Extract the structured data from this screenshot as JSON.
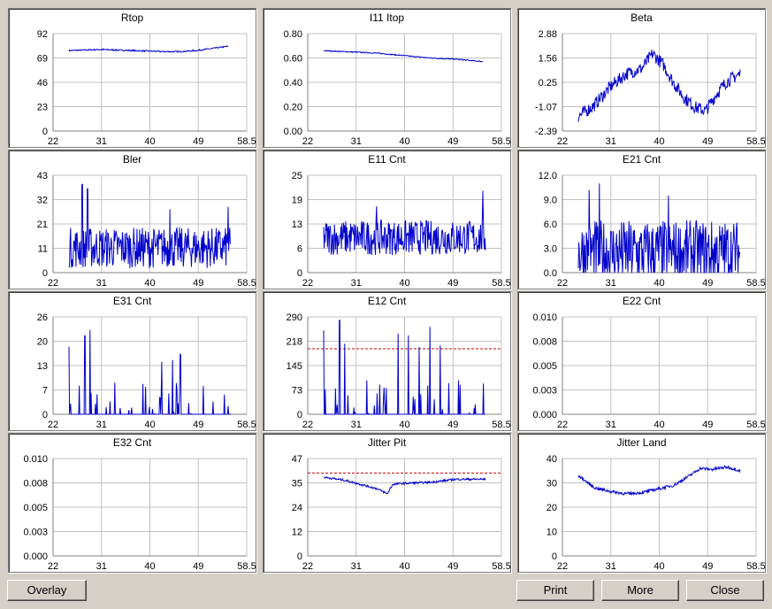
{
  "buttons": {
    "overlay": "Overlay",
    "print": "Print",
    "more": "More",
    "close": "Close"
  },
  "colors": {
    "series": "#0000cc",
    "limit": "#cc0000",
    "grid": "#c0c0c0"
  },
  "chart_data": [
    {
      "type": "line",
      "title": "Rtop",
      "xticks": [
        "22",
        "31",
        "40",
        "49",
        "58.5"
      ],
      "xlim": [
        22,
        58.5
      ],
      "yticks": [
        "0",
        "23",
        "46",
        "69",
        "92"
      ],
      "ylim": [
        0,
        92
      ],
      "series": [
        {
          "x": [
            25,
            28,
            31,
            34,
            37,
            40,
            43,
            46,
            49,
            52,
            55
          ],
          "y": [
            76,
            76.5,
            77,
            76.5,
            76,
            75.5,
            75,
            75,
            76,
            78,
            80
          ]
        }
      ],
      "noise": 0.6,
      "spikes": false,
      "limit": null
    },
    {
      "type": "line",
      "title": "I11 Itop",
      "xticks": [
        "22",
        "31",
        "40",
        "49",
        "58.5"
      ],
      "xlim": [
        22,
        58.5
      ],
      "yticks": [
        "0.00",
        "0.20",
        "0.40",
        "0.60",
        "0.80"
      ],
      "ylim": [
        0,
        0.8
      ],
      "series": [
        {
          "x": [
            25,
            30,
            35,
            40,
            45,
            50,
            55
          ],
          "y": [
            0.66,
            0.65,
            0.64,
            0.62,
            0.6,
            0.59,
            0.57
          ]
        }
      ],
      "noise": 0.004,
      "spikes": false,
      "limit": null
    },
    {
      "type": "line",
      "title": "Beta",
      "xticks": [
        "22",
        "31",
        "40",
        "49",
        "58.5"
      ],
      "xlim": [
        22,
        58.5
      ],
      "yticks": [
        "-2.39",
        "-1.07",
        "0.25",
        "1.56",
        "2.88"
      ],
      "ylim": [
        -2.39,
        2.88
      ],
      "series": [
        {
          "x": [
            25,
            28,
            31,
            34,
            37,
            39,
            41,
            43,
            45,
            47,
            49,
            51,
            53,
            55.5
          ],
          "y": [
            -1.6,
            -1.0,
            0.0,
            0.7,
            1.0,
            1.8,
            1.2,
            0.2,
            -0.6,
            -1.1,
            -1.3,
            -0.4,
            0.3,
            0.7
          ]
        }
      ],
      "noise": 0.35,
      "spikes": false,
      "limit": null
    },
    {
      "type": "line",
      "title": "Bler",
      "xticks": [
        "22",
        "31",
        "40",
        "49",
        "58.5"
      ],
      "xlim": [
        22,
        58.5
      ],
      "yticks": [
        "0",
        "11",
        "21",
        "32",
        "43"
      ],
      "ylim": [
        0,
        43
      ],
      "series": [
        {
          "x": [
            25,
            55.5
          ],
          "y": [
            11,
            11
          ]
        }
      ],
      "noise": 9,
      "peaks": [
        [
          27.5,
          39
        ],
        [
          28.5,
          37
        ],
        [
          44,
          28
        ],
        [
          55,
          29
        ]
      ],
      "spikes": false,
      "limit": null
    },
    {
      "type": "line",
      "title": "E11 Cnt",
      "xticks": [
        "22",
        "31",
        "40",
        "49",
        "58.5"
      ],
      "xlim": [
        22,
        58.5
      ],
      "yticks": [
        "0",
        "6",
        "13",
        "19",
        "25"
      ],
      "ylim": [
        0,
        25
      ],
      "series": [
        {
          "x": [
            25,
            55.5
          ],
          "y": [
            9,
            9
          ]
        }
      ],
      "noise": 4.5,
      "peaks": [
        [
          35,
          17
        ],
        [
          55,
          21
        ]
      ],
      "spikes": false,
      "limit": null
    },
    {
      "type": "line",
      "title": "E21 Cnt",
      "xticks": [
        "22",
        "31",
        "40",
        "49",
        "58.5"
      ],
      "xlim": [
        22,
        58.5
      ],
      "yticks": [
        "0.0",
        "3.0",
        "6.0",
        "9.0",
        "12.0"
      ],
      "ylim": [
        0,
        12
      ],
      "series": [
        {
          "x": [
            25,
            55.5
          ],
          "y": [
            2.5,
            2.5
          ]
        }
      ],
      "noise": 4,
      "peaks": [
        [
          29,
          11
        ],
        [
          27,
          10.2
        ],
        [
          42,
          9.5
        ]
      ],
      "spikes": true,
      "limit": null
    },
    {
      "type": "line",
      "title": "E31 Cnt",
      "xticks": [
        "22",
        "31",
        "40",
        "49",
        "58.5"
      ],
      "xlim": [
        22,
        58.5
      ],
      "yticks": [
        "0",
        "7",
        "13",
        "20",
        "26"
      ],
      "ylim": [
        0,
        26
      ],
      "series": [
        {
          "x": [
            25,
            55.5
          ],
          "y": [
            0,
            0
          ]
        }
      ],
      "noise": 0,
      "peaks": [
        [
          25,
          18
        ],
        [
          28,
          21
        ],
        [
          29,
          22.5
        ],
        [
          42.5,
          14
        ],
        [
          44.5,
          14.5
        ],
        [
          46,
          16
        ]
      ],
      "spikes": true,
      "sparse": true,
      "limit": null
    },
    {
      "type": "line",
      "title": "E12 Cnt",
      "xticks": [
        "22",
        "31",
        "40",
        "49",
        "58.5"
      ],
      "xlim": [
        22,
        58.5
      ],
      "yticks": [
        "0",
        "73",
        "145",
        "218",
        "290"
      ],
      "ylim": [
        0,
        290
      ],
      "series": [
        {
          "x": [
            25,
            55.5
          ],
          "y": [
            0,
            0
          ]
        }
      ],
      "noise": 0,
      "peaks": [
        [
          25,
          250
        ],
        [
          28,
          280
        ],
        [
          29,
          210
        ],
        [
          39,
          240
        ],
        [
          41,
          235
        ],
        [
          43,
          200
        ],
        [
          45,
          260
        ],
        [
          47,
          205
        ]
      ],
      "spikes": true,
      "sparse": true,
      "limit": 195
    },
    {
      "type": "line",
      "title": "E22 Cnt",
      "xticks": [
        "22",
        "31",
        "40",
        "49",
        "58.5"
      ],
      "xlim": [
        22,
        58.5
      ],
      "yticks": [
        "0.000",
        "0.003",
        "0.005",
        "0.008",
        "0.010"
      ],
      "ylim": [
        0,
        0.01
      ],
      "series": [],
      "limit": null
    },
    {
      "type": "line",
      "title": "E32 Cnt",
      "xticks": [
        "22",
        "31",
        "40",
        "49",
        "58.5"
      ],
      "xlim": [
        22,
        58.5
      ],
      "yticks": [
        "0.000",
        "0.003",
        "0.005",
        "0.008",
        "0.010"
      ],
      "ylim": [
        0,
        0.01
      ],
      "series": [],
      "limit": null
    },
    {
      "type": "line",
      "title": "Jitter Pit",
      "xticks": [
        "22",
        "31",
        "40",
        "49",
        "58.5"
      ],
      "xlim": [
        22,
        58.5
      ],
      "yticks": [
        "0",
        "12",
        "24",
        "35",
        "47"
      ],
      "ylim": [
        0,
        47
      ],
      "series": [
        {
          "x": [
            25,
            29,
            32,
            35,
            37,
            38,
            40,
            45,
            50,
            55.5
          ],
          "y": [
            38,
            36.5,
            34.5,
            32.5,
            30,
            34.5,
            35,
            35.5,
            37,
            37
          ]
        }
      ],
      "noise": 0.5,
      "spikes": false,
      "limit": 40
    },
    {
      "type": "line",
      "title": "Jitter Land",
      "xticks": [
        "22",
        "31",
        "40",
        "49",
        "58.5"
      ],
      "xlim": [
        22,
        58.5
      ],
      "yticks": [
        "0",
        "10",
        "20",
        "30",
        "40"
      ],
      "ylim": [
        0,
        40
      ],
      "series": [
        {
          "x": [
            25,
            28,
            31,
            34,
            37,
            40,
            43,
            46,
            48,
            50,
            53,
            55.5
          ],
          "y": [
            33,
            28,
            26.5,
            25.5,
            26,
            27.5,
            29,
            33,
            36,
            35.5,
            36.5,
            35
          ]
        }
      ],
      "noise": 0.6,
      "spikes": false,
      "limit": null
    }
  ]
}
